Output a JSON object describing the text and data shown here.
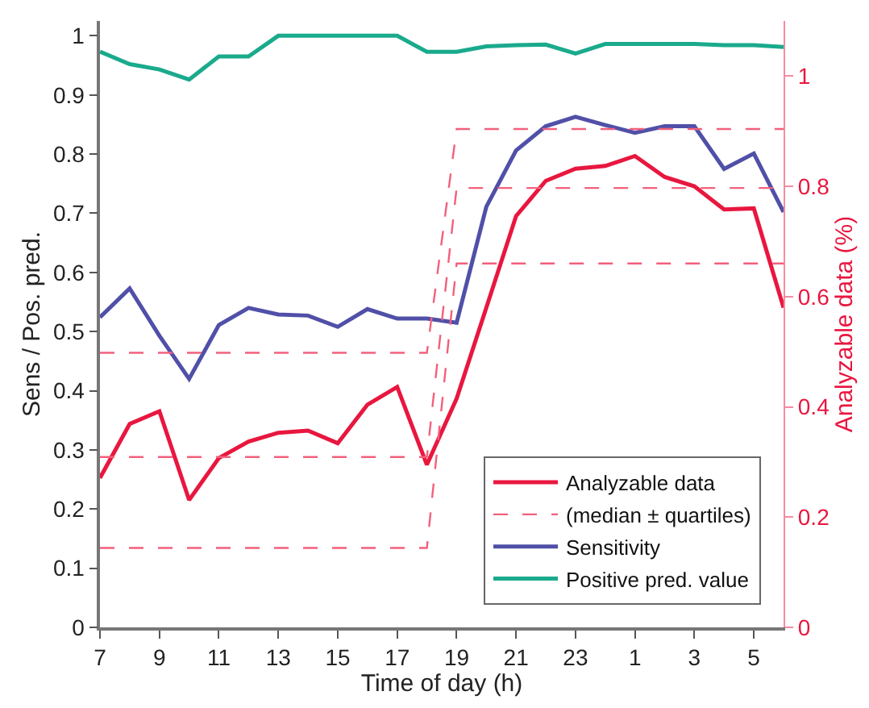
{
  "chart_data": {
    "type": "line",
    "xlabel": "Time of day (h)",
    "ylabel": "Sens / Pos. pred.",
    "y2label": "Analyzable data (%)",
    "categories": [
      "7",
      null,
      "9",
      null,
      "11",
      null,
      "13",
      null,
      "15",
      null,
      "17",
      null,
      "19",
      null,
      "21",
      null,
      "23",
      null,
      "1",
      null,
      "3",
      null,
      "5",
      null
    ],
    "ylim": [
      0,
      1.025
    ],
    "yticks": [
      0,
      0.1,
      0.2,
      0.3,
      0.4,
      0.5,
      0.6,
      0.7,
      0.8,
      0.9,
      1
    ],
    "y2lim": [
      0,
      1.1
    ],
    "y2ticks": [
      0,
      0.2,
      0.4,
      0.6,
      0.8,
      1
    ],
    "legend": "bottom right",
    "series": [
      {
        "name": "Analyzable data",
        "color": "#e8173f",
        "axis": "y2",
        "values": [
          0.271,
          0.369,
          0.392,
          0.231,
          0.307,
          0.337,
          0.353,
          0.357,
          0.334,
          0.404,
          0.436,
          0.295,
          0.415,
          0.58,
          0.746,
          0.81,
          0.832,
          0.837,
          0.855,
          0.817,
          0.8,
          0.758,
          0.76,
          0.58
        ]
      },
      {
        "name": "(median ± quartiles)",
        "color": "#f2607c",
        "axis": "y2",
        "line_style": "dashed",
        "values": [
          0.498,
          0.498,
          0.498,
          0.498,
          0.498,
          0.498,
          0.498,
          0.498,
          0.498,
          0.498,
          0.498,
          0.498,
          0.904,
          0.904,
          0.904,
          0.904,
          0.904,
          0.904,
          0.904,
          0.904,
          0.904,
          0.904,
          0.904,
          0.904
        ]
      },
      {
        "color": "#f2607c",
        "axis": "y2",
        "line_style": "dashed",
        "values": [
          0.309,
          0.309,
          0.309,
          0.309,
          0.309,
          0.309,
          0.309,
          0.309,
          0.309,
          0.309,
          0.309,
          0.309,
          0.797,
          0.797,
          0.797,
          0.797,
          0.797,
          0.797,
          0.797,
          0.797,
          0.797,
          0.797,
          0.797,
          0.797
        ]
      },
      {
        "color": "#f2607c",
        "axis": "y2",
        "line_style": "dashed",
        "values": [
          0.144,
          0.144,
          0.144,
          0.144,
          0.144,
          0.144,
          0.144,
          0.144,
          0.144,
          0.144,
          0.144,
          0.144,
          0.66,
          0.66,
          0.66,
          0.66,
          0.66,
          0.66,
          0.66,
          0.66,
          0.66,
          0.66,
          0.66,
          0.66
        ]
      },
      {
        "name": "Sensitivity",
        "color": "#5050a8",
        "values": [
          0.524,
          0.573,
          0.493,
          0.42,
          0.511,
          0.54,
          0.529,
          0.527,
          0.508,
          0.538,
          0.522,
          0.522,
          0.515,
          0.711,
          0.806,
          0.847,
          0.863,
          0.849,
          0.836,
          0.847,
          0.847,
          0.775,
          0.801,
          0.702
        ]
      },
      {
        "name": "Positive pred. value",
        "color": "#1aaa8c",
        "values": [
          0.973,
          0.952,
          0.943,
          0.926,
          0.965,
          0.965,
          1,
          1,
          1,
          1,
          1,
          0.973,
          0.973,
          0.982,
          0.984,
          0.985,
          0.97,
          0.986,
          0.986,
          0.986,
          0.986,
          0.984,
          0.984,
          0.981
        ]
      }
    ]
  }
}
